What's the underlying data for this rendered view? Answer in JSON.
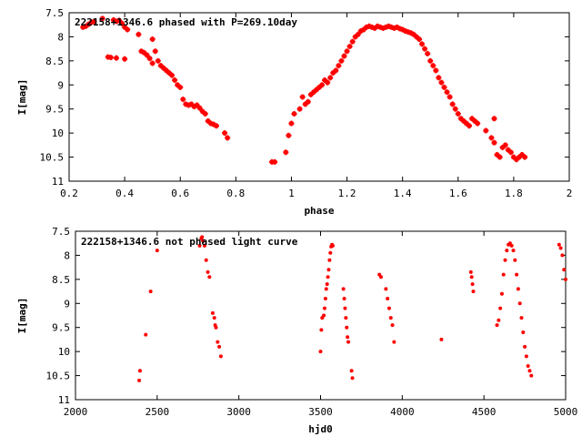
{
  "chart_data": [
    {
      "type": "scatter",
      "title": "222158+1346.6 phased with P=269.10day",
      "xlabel": "phase",
      "ylabel": "I[mag]",
      "xlim": [
        0.2,
        2.0
      ],
      "ylim": [
        7.5,
        11.0
      ],
      "y_inverted": true,
      "x_ticks": [
        "0.2",
        "0.4",
        "0.6",
        "0.8",
        "1",
        "1.2",
        "1.4",
        "1.6",
        "1.8",
        "2"
      ],
      "y_ticks": [
        "7.5",
        "8",
        "8.5",
        "9",
        "9.5",
        "10",
        "10.5",
        "11"
      ],
      "marker_color": "#ff0000",
      "marker": "star",
      "points": [
        [
          0.25,
          7.8
        ],
        [
          0.26,
          7.78
        ],
        [
          0.27,
          7.74
        ],
        [
          0.28,
          7.7
        ],
        [
          0.29,
          7.68
        ],
        [
          0.32,
          7.62
        ],
        [
          0.36,
          7.65
        ],
        [
          0.37,
          7.68
        ],
        [
          0.38,
          7.66
        ],
        [
          0.39,
          7.72
        ],
        [
          0.4,
          7.8
        ],
        [
          0.41,
          7.85
        ],
        [
          0.34,
          8.42
        ],
        [
          0.35,
          8.43
        ],
        [
          0.37,
          8.44
        ],
        [
          0.4,
          8.46
        ],
        [
          0.45,
          7.95
        ],
        [
          0.46,
          8.3
        ],
        [
          0.47,
          8.33
        ],
        [
          0.48,
          8.38
        ],
        [
          0.49,
          8.45
        ],
        [
          0.5,
          8.55
        ],
        [
          0.5,
          8.05
        ],
        [
          0.51,
          8.3
        ],
        [
          0.52,
          8.5
        ],
        [
          0.53,
          8.6
        ],
        [
          0.54,
          8.65
        ],
        [
          0.55,
          8.7
        ],
        [
          0.56,
          8.75
        ],
        [
          0.57,
          8.8
        ],
        [
          0.58,
          8.9
        ],
        [
          0.59,
          9.0
        ],
        [
          0.6,
          9.05
        ],
        [
          0.61,
          9.3
        ],
        [
          0.62,
          9.4
        ],
        [
          0.63,
          9.42
        ],
        [
          0.64,
          9.4
        ],
        [
          0.65,
          9.45
        ],
        [
          0.66,
          9.42
        ],
        [
          0.67,
          9.48
        ],
        [
          0.68,
          9.55
        ],
        [
          0.69,
          9.6
        ],
        [
          0.7,
          9.75
        ],
        [
          0.71,
          9.8
        ],
        [
          0.72,
          9.82
        ],
        [
          0.73,
          9.85
        ],
        [
          0.76,
          10.0
        ],
        [
          0.77,
          10.1
        ],
        [
          0.93,
          10.6
        ],
        [
          0.94,
          10.6
        ],
        [
          0.98,
          10.4
        ],
        [
          0.99,
          10.05
        ],
        [
          1.0,
          9.8
        ],
        [
          1.01,
          9.6
        ],
        [
          1.03,
          9.5
        ],
        [
          1.04,
          9.25
        ],
        [
          1.05,
          9.4
        ],
        [
          1.06,
          9.35
        ],
        [
          1.07,
          9.2
        ],
        [
          1.08,
          9.15
        ],
        [
          1.09,
          9.1
        ],
        [
          1.1,
          9.05
        ],
        [
          1.11,
          9.0
        ],
        [
          1.12,
          8.9
        ],
        [
          1.13,
          8.95
        ],
        [
          1.14,
          8.85
        ],
        [
          1.15,
          8.75
        ],
        [
          1.16,
          8.7
        ],
        [
          1.17,
          8.6
        ],
        [
          1.18,
          8.5
        ],
        [
          1.19,
          8.4
        ],
        [
          1.2,
          8.3
        ],
        [
          1.21,
          8.2
        ],
        [
          1.22,
          8.1
        ],
        [
          1.23,
          8.0
        ],
        [
          1.24,
          7.95
        ],
        [
          1.25,
          7.88
        ],
        [
          1.26,
          7.85
        ],
        [
          1.27,
          7.8
        ],
        [
          1.28,
          7.78
        ],
        [
          1.29,
          7.8
        ],
        [
          1.3,
          7.82
        ],
        [
          1.31,
          7.78
        ],
        [
          1.32,
          7.8
        ],
        [
          1.33,
          7.82
        ],
        [
          1.34,
          7.8
        ],
        [
          1.35,
          7.78
        ],
        [
          1.36,
          7.8
        ],
        [
          1.37,
          7.82
        ],
        [
          1.38,
          7.8
        ],
        [
          1.39,
          7.83
        ],
        [
          1.4,
          7.85
        ],
        [
          1.41,
          7.88
        ],
        [
          1.42,
          7.9
        ],
        [
          1.43,
          7.92
        ],
        [
          1.44,
          7.95
        ],
        [
          1.45,
          8.0
        ],
        [
          1.46,
          8.05
        ],
        [
          1.47,
          8.15
        ],
        [
          1.48,
          8.25
        ],
        [
          1.49,
          8.35
        ],
        [
          1.5,
          8.5
        ],
        [
          1.51,
          8.6
        ],
        [
          1.52,
          8.7
        ],
        [
          1.53,
          8.85
        ],
        [
          1.54,
          8.95
        ],
        [
          1.55,
          9.05
        ],
        [
          1.56,
          9.15
        ],
        [
          1.57,
          9.25
        ],
        [
          1.58,
          9.4
        ],
        [
          1.59,
          9.5
        ],
        [
          1.6,
          9.6
        ],
        [
          1.61,
          9.7
        ],
        [
          1.62,
          9.75
        ],
        [
          1.63,
          9.8
        ],
        [
          1.64,
          9.85
        ],
        [
          1.65,
          9.7
        ],
        [
          1.66,
          9.75
        ],
        [
          1.67,
          9.8
        ],
        [
          1.7,
          9.95
        ],
        [
          1.72,
          10.1
        ],
        [
          1.73,
          10.2
        ],
        [
          1.74,
          10.45
        ],
        [
          1.75,
          10.5
        ],
        [
          1.76,
          10.3
        ],
        [
          1.77,
          10.25
        ],
        [
          1.78,
          10.35
        ],
        [
          1.79,
          10.4
        ],
        [
          1.8,
          10.5
        ],
        [
          1.81,
          10.55
        ],
        [
          1.82,
          10.5
        ],
        [
          1.83,
          10.45
        ],
        [
          1.84,
          10.5
        ],
        [
          1.73,
          9.7
        ]
      ]
    },
    {
      "type": "scatter",
      "title": "222158+1346.6 not phased light curve",
      "xlabel": "hjd0",
      "ylabel": "I[mag]",
      "xlim": [
        2000,
        5000
      ],
      "ylim": [
        7.5,
        11.0
      ],
      "y_inverted": true,
      "x_ticks": [
        "2000",
        "2500",
        "3000",
        "3500",
        "4000",
        "4500",
        "5000"
      ],
      "y_ticks": [
        "7.5",
        "8",
        "8.5",
        "9",
        "9.5",
        "10",
        "10.5",
        "11"
      ],
      "marker_color": "#ff0000",
      "marker": "dot",
      "points": [
        [
          2390,
          10.6
        ],
        [
          2395,
          10.4
        ],
        [
          2430,
          9.65
        ],
        [
          2460,
          8.75
        ],
        [
          2500,
          7.9
        ],
        [
          2760,
          7.8
        ],
        [
          2770,
          7.65
        ],
        [
          2775,
          7.62
        ],
        [
          2780,
          7.7
        ],
        [
          2790,
          7.8
        ],
        [
          2800,
          8.1
        ],
        [
          2810,
          8.35
        ],
        [
          2820,
          8.45
        ],
        [
          2840,
          9.2
        ],
        [
          2850,
          9.3
        ],
        [
          2855,
          9.45
        ],
        [
          2860,
          9.5
        ],
        [
          2870,
          9.8
        ],
        [
          2880,
          9.9
        ],
        [
          2890,
          10.1
        ],
        [
          3500,
          10.0
        ],
        [
          3505,
          9.55
        ],
        [
          3510,
          9.3
        ],
        [
          3520,
          9.25
        ],
        [
          3525,
          9.1
        ],
        [
          3530,
          8.9
        ],
        [
          3535,
          8.7
        ],
        [
          3540,
          8.6
        ],
        [
          3545,
          8.45
        ],
        [
          3550,
          8.3
        ],
        [
          3555,
          8.1
        ],
        [
          3560,
          7.95
        ],
        [
          3565,
          7.82
        ],
        [
          3570,
          7.78
        ],
        [
          3575,
          7.8
        ],
        [
          3640,
          8.7
        ],
        [
          3645,
          8.9
        ],
        [
          3650,
          9.1
        ],
        [
          3655,
          9.3
        ],
        [
          3660,
          9.5
        ],
        [
          3665,
          9.7
        ],
        [
          3670,
          9.8
        ],
        [
          3690,
          10.4
        ],
        [
          3695,
          10.55
        ],
        [
          3860,
          8.4
        ],
        [
          3870,
          8.45
        ],
        [
          3900,
          8.7
        ],
        [
          3910,
          8.9
        ],
        [
          3920,
          9.1
        ],
        [
          3930,
          9.3
        ],
        [
          3940,
          9.45
        ],
        [
          3950,
          9.8
        ],
        [
          4240,
          9.75
        ],
        [
          4420,
          8.35
        ],
        [
          4425,
          8.45
        ],
        [
          4430,
          8.6
        ],
        [
          4435,
          8.75
        ],
        [
          4580,
          9.45
        ],
        [
          4590,
          9.35
        ],
        [
          4600,
          9.1
        ],
        [
          4610,
          8.8
        ],
        [
          4620,
          8.4
        ],
        [
          4630,
          8.1
        ],
        [
          4640,
          7.9
        ],
        [
          4650,
          7.78
        ],
        [
          4660,
          7.75
        ],
        [
          4670,
          7.8
        ],
        [
          4680,
          7.9
        ],
        [
          4690,
          8.1
        ],
        [
          4700,
          8.4
        ],
        [
          4710,
          8.7
        ],
        [
          4720,
          9.0
        ],
        [
          4730,
          9.3
        ],
        [
          4740,
          9.6
        ],
        [
          4750,
          9.9
        ],
        [
          4760,
          10.1
        ],
        [
          4770,
          10.3
        ],
        [
          4780,
          10.4
        ],
        [
          4790,
          10.5
        ],
        [
          4960,
          7.78
        ],
        [
          4970,
          7.85
        ],
        [
          4980,
          8.0
        ],
        [
          4990,
          8.3
        ],
        [
          5000,
          8.5
        ]
      ]
    }
  ]
}
